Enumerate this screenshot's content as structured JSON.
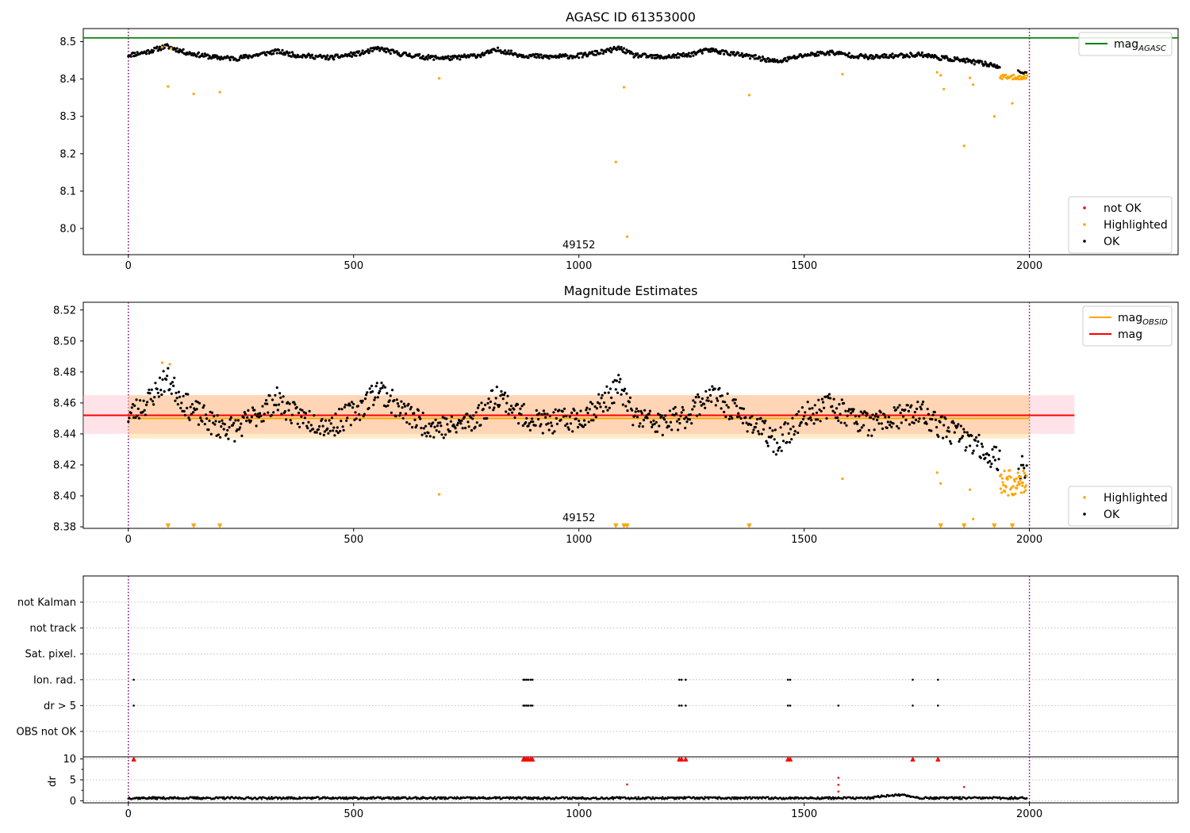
{
  "chart_data": [
    {
      "type": "scatter",
      "title": "AGASC ID 61353000",
      "xlabel": "",
      "ylabel": "",
      "xlim": [
        -100,
        2330
      ],
      "ylim": [
        7.93,
        8.535
      ],
      "xticks": [
        0,
        500,
        1000,
        1500,
        2000
      ],
      "yticks": [
        8.0,
        8.1,
        8.2,
        8.3,
        8.4,
        8.5
      ],
      "obsid_label": "49152",
      "obsid_label_x": 1000,
      "obs_boundaries": [
        0,
        2000
      ],
      "hlines": [
        {
          "name": "mag_AGASC",
          "value": 8.51,
          "color": "#008000",
          "x_range": [
            -100,
            2330
          ]
        }
      ],
      "legends": [
        {
          "position": "top-right",
          "entries": [
            {
              "label": "mag",
              "sub": "AGASC",
              "kind": "line",
              "color": "#008000"
            }
          ]
        },
        {
          "position": "bottom-right",
          "entries": [
            {
              "label": "not OK",
              "kind": "dot",
              "color": "#ff0000"
            },
            {
              "label": "Highlighted",
              "kind": "dot",
              "color": "#ffa500"
            },
            {
              "label": "OK",
              "kind": "dot",
              "color": "#000000"
            }
          ]
        }
      ],
      "series": [
        {
          "name": "OK",
          "color": "#000000",
          "generator": "ok_mag_trace",
          "x_range": [
            0,
            1995
          ]
        },
        {
          "name": "Highlighted",
          "color": "#ffa500",
          "points": [
            [
              75,
              8.485
            ],
            [
              88,
              8.38
            ],
            [
              95,
              8.482
            ],
            [
              145,
              8.36
            ],
            [
              203,
              8.365
            ],
            [
              690,
              8.402
            ],
            [
              1082,
              8.178
            ],
            [
              1100,
              8.378
            ],
            [
              1107,
              7.978
            ],
            [
              1378,
              8.357
            ],
            [
              1585,
              8.413
            ],
            [
              1795,
              8.418
            ],
            [
              1803,
              8.41
            ],
            [
              1810,
              8.373
            ],
            [
              1855,
              8.221
            ],
            [
              1868,
              8.403
            ],
            [
              1875,
              8.385
            ],
            [
              1922,
              8.3
            ],
            [
              1962,
              8.335
            ]
          ]
        },
        {
          "name": "Highlighted",
          "color": "#ffa500",
          "generator": "highlight_tail",
          "x_range": [
            1935,
            1995
          ],
          "y_center": 8.405
        }
      ]
    },
    {
      "type": "scatter",
      "title": "Magnitude Estimates",
      "xlabel": "",
      "ylabel": "",
      "xlim": [
        -100,
        2330
      ],
      "ylim": [
        8.379,
        8.525
      ],
      "xticks": [
        0,
        500,
        1000,
        1500,
        2000
      ],
      "yticks": [
        8.38,
        8.4,
        8.42,
        8.44,
        8.46,
        8.48,
        8.5,
        8.52
      ],
      "obsid_label": "49152",
      "obsid_label_x": 1000,
      "obs_boundaries": [
        0,
        2000
      ],
      "bands": [
        {
          "color": "#ffc0cb",
          "opacity": 0.45,
          "y_range": [
            8.44,
            8.465
          ],
          "x_range": [
            -100,
            2100
          ]
        },
        {
          "color": "#ffa500",
          "opacity": 0.22,
          "y_range": [
            8.437,
            8.465
          ],
          "x_range": [
            0,
            2000
          ]
        }
      ],
      "hlines": [
        {
          "name": "mag",
          "value": 8.452,
          "color": "#ff0000",
          "x_range": [
            -100,
            2100
          ]
        },
        {
          "name": "mag_OBSID",
          "value": 8.45,
          "color": "#ffa500",
          "x_range": [
            0,
            2000
          ]
        }
      ],
      "legends": [
        {
          "position": "top-right",
          "entries": [
            {
              "label": "mag",
              "sub": "OBSID",
              "kind": "line",
              "color": "#ffa500"
            },
            {
              "label": "mag",
              "kind": "line",
              "color": "#ff0000"
            }
          ]
        },
        {
          "position": "bottom-right",
          "entries": [
            {
              "label": "Highlighted",
              "kind": "dot",
              "color": "#ffa500"
            },
            {
              "label": "OK",
              "kind": "dot",
              "color": "#000000"
            }
          ]
        }
      ],
      "series": [
        {
          "name": "OK",
          "color": "#000000",
          "generator": "ok_mag_trace",
          "x_range": [
            0,
            1995
          ]
        },
        {
          "name": "Highlighted",
          "color": "#ffa500",
          "points": [
            [
              75,
              8.486
            ],
            [
              92,
              8.485
            ],
            [
              690,
              8.401
            ],
            [
              1585,
              8.411
            ],
            [
              1795,
              8.415
            ],
            [
              1803,
              8.408
            ],
            [
              1868,
              8.404
            ],
            [
              1875,
              8.385
            ]
          ]
        },
        {
          "name": "Highlighted",
          "color": "#ffa500",
          "generator": "highlight_tail",
          "x_range": [
            1935,
            1995
          ],
          "y_center": 8.408
        },
        {
          "name": "Highlighted (off-scale)",
          "color": "#ffa500",
          "marker": "triangle-down",
          "x": [
            88,
            145,
            203,
            1082,
            1100,
            1107,
            1378,
            1803,
            1855,
            1922,
            1962
          ]
        }
      ]
    },
    {
      "type": "scatter",
      "title": "",
      "xlim": [
        -100,
        2330
      ],
      "obs_boundaries": [
        0,
        2000
      ],
      "categories": [
        "not Kalman",
        "not track",
        "Sat. pixel.",
        "Ion. rad.",
        "dr > 5",
        "OBS not OK"
      ],
      "flags": {
        "Ion. rad.": [
          12,
          877,
          880,
          884,
          888,
          893,
          897,
          1223,
          1228,
          1237,
          1464,
          1469,
          1741,
          1797
        ],
        "dr > 5": [
          12,
          877,
          880,
          884,
          888,
          893,
          897,
          1223,
          1228,
          1237,
          1464,
          1469,
          1576,
          1741,
          1797
        ]
      }
    },
    {
      "type": "scatter",
      "title": "",
      "xlabel": "",
      "ylabel": "dr",
      "xlim": [
        -100,
        2330
      ],
      "ylim": [
        -0.5,
        10.5
      ],
      "xticks": [
        0,
        500,
        1000,
        1500,
        2000
      ],
      "yticks": [
        0,
        5,
        10
      ],
      "obs_boundaries": [
        0,
        2000
      ],
      "series": [
        {
          "name": "OK",
          "color": "#000000",
          "generator": "dr_baseline",
          "x_range": [
            0,
            1995
          ]
        },
        {
          "name": "not OK (clipped)",
          "color": "#ff0000",
          "marker": "triangle-up",
          "x": [
            12,
            877,
            880,
            884,
            888,
            893,
            897,
            1223,
            1228,
            1237,
            1464,
            1469,
            1741,
            1797
          ],
          "y": 10
        },
        {
          "name": "not OK",
          "color": "#ff0000",
          "points": [
            [
              1107,
              3.9
            ],
            [
              1576,
              5.5
            ],
            [
              1576,
              3.8
            ],
            [
              1576,
              2.2
            ],
            [
              1855,
              3.3
            ]
          ]
        }
      ]
    }
  ]
}
